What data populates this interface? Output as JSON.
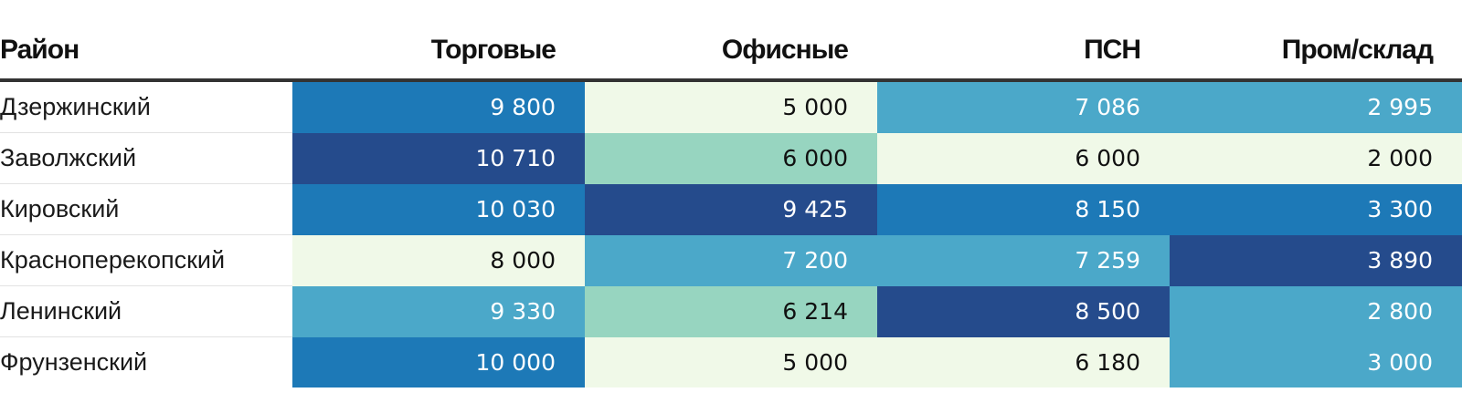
{
  "chart_data": {
    "type": "table",
    "columns": [
      "Район",
      "Торговые",
      "Офисные",
      "ПСН",
      "Пром/склад"
    ],
    "rows": [
      {
        "district": "Дзержинский",
        "values": [
          "9 800",
          "5 000",
          "7 086",
          "2 995"
        ],
        "numeric": [
          9800,
          5000,
          7086,
          2995
        ]
      },
      {
        "district": "Заволжский",
        "values": [
          "10 710",
          "6 000",
          "6 000",
          "2 000"
        ],
        "numeric": [
          10710,
          6000,
          6000,
          2000
        ]
      },
      {
        "district": "Кировский",
        "values": [
          "10 030",
          "9 425",
          "8 150",
          "3 300"
        ],
        "numeric": [
          10030,
          9425,
          8150,
          3300
        ]
      },
      {
        "district": "Красноперекопский",
        "values": [
          "8 000",
          "7 200",
          "7 259",
          "3 890"
        ],
        "numeric": [
          8000,
          7200,
          7259,
          3890
        ]
      },
      {
        "district": "Ленинский",
        "values": [
          "9 330",
          "6 214",
          "8 500",
          "2 800"
        ],
        "numeric": [
          9330,
          6214,
          8500,
          2800
        ]
      },
      {
        "district": "Фрунзенский",
        "values": [
          "10 000",
          "5 000",
          "6 180",
          "3 000"
        ],
        "numeric": [
          10000,
          5000,
          6180,
          3000
        ]
      }
    ]
  },
  "colors": {
    "scale": [
      "#f0f9e8",
      "#97d5c0",
      "#4ba8c9",
      "#1d79b7",
      "#254b8c"
    ],
    "dark_text": "#111111",
    "light_text": "#ffffff"
  }
}
